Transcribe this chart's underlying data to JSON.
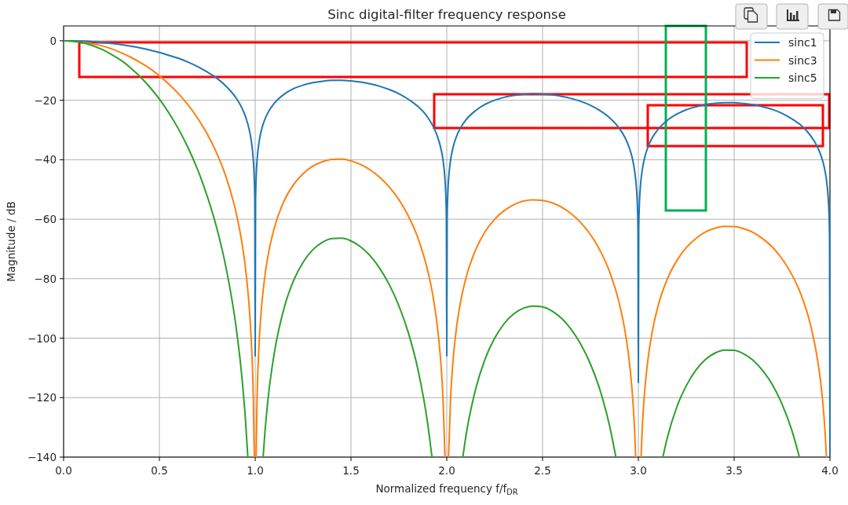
{
  "chart_data": {
    "type": "line",
    "title": "Sinc digital-filter frequency response",
    "xlabel": "Normalized frequency f/f$_{DR}$",
    "ylabel": "Magnitude / dB",
    "xlim": [
      0,
      4
    ],
    "ylim": [
      -140,
      5
    ],
    "xticks": [
      {
        "value": 0,
        "label": "0.0"
      },
      {
        "value": 0.5,
        "label": "0.5"
      },
      {
        "value": 1,
        "label": "1.0"
      },
      {
        "value": 1.5,
        "label": "1.5"
      },
      {
        "value": 2,
        "label": "2.0"
      },
      {
        "value": 2.5,
        "label": "2.5"
      },
      {
        "value": 3,
        "label": "3.0"
      },
      {
        "value": 3.5,
        "label": "3.5"
      },
      {
        "value": 4,
        "label": "4.0"
      }
    ],
    "yticks": [
      {
        "value": -140,
        "label": "−140"
      },
      {
        "value": -120,
        "label": "−120"
      },
      {
        "value": -100,
        "label": "−100"
      },
      {
        "value": -80,
        "label": "−80"
      },
      {
        "value": -60,
        "label": "−60"
      },
      {
        "value": -40,
        "label": "−40"
      },
      {
        "value": -20,
        "label": "−20"
      },
      0
    ],
    "grid": true,
    "legend": "top right",
    "series": [
      {
        "name": "sinc1",
        "color": "#1f77b4",
        "x": [
          0,
          0.05,
          0.1,
          0.15,
          0.2,
          0.25,
          0.3,
          0.35,
          0.4,
          0.45,
          0.5,
          0.55,
          0.6,
          0.65,
          0.7,
          0.75,
          0.8,
          0.85,
          0.9,
          0.93,
          0.95,
          0.97,
          0.98,
          0.99,
          0.995,
          0.998,
          1.0,
          1.002,
          1.005,
          1.01,
          1.02,
          1.03,
          1.05,
          1.07,
          1.1,
          1.15,
          1.2,
          1.25,
          1.3,
          1.35,
          1.4,
          1.45,
          1.5,
          1.55,
          1.6,
          1.65,
          1.7,
          1.75,
          1.8,
          1.85,
          1.9,
          1.93,
          1.95,
          1.97,
          1.98,
          1.99,
          1.995,
          1.998,
          2.0,
          2.002,
          2.005,
          2.01,
          2.02,
          2.03,
          2.05,
          2.07,
          2.1,
          2.15,
          2.2,
          2.25,
          2.3,
          2.35,
          2.4,
          2.45,
          2.5,
          2.55,
          2.6,
          2.65,
          2.7,
          2.75,
          2.8,
          2.85,
          2.9,
          2.93,
          2.95,
          2.97,
          2.98,
          2.99,
          2.995,
          2.998,
          3.0,
          3.002,
          3.005,
          3.01,
          3.02,
          3.03,
          3.05,
          3.07,
          3.1,
          3.15,
          3.2,
          3.25,
          3.3,
          3.35,
          3.4,
          3.45,
          3.5,
          3.55,
          3.6,
          3.65,
          3.7,
          3.75,
          3.8,
          3.85,
          3.9,
          3.93,
          3.95,
          3.97,
          3.98,
          3.99,
          3.995,
          3.998,
          4.0
        ],
        "values": [
          0,
          0.0,
          -0.1,
          -0.3,
          -0.6,
          -0.9,
          -1.3,
          -1.8,
          -2.4,
          -3.1,
          -3.9,
          -4.9,
          -5.9,
          -7.2,
          -8.7,
          -10.5,
          -12.6,
          -15.4,
          -19.2,
          -22.5,
          -25.6,
          -30.2,
          -33.8,
          -39.9,
          -46.0,
          -54.0,
          -106,
          -54.0,
          -46.1,
          -40.1,
          -34.2,
          -30.7,
          -26.5,
          -23.8,
          -21.0,
          -18.0,
          -16.1,
          -14.9,
          -14.1,
          -13.6,
          -13.3,
          -13.3,
          -13.5,
          -13.9,
          -14.5,
          -15.3,
          -16.4,
          -17.8,
          -19.7,
          -22.1,
          -25.7,
          -28.9,
          -31.9,
          -36.4,
          -39.9,
          -46.0,
          -52.0,
          -60.0,
          -106,
          -60.0,
          -52.1,
          -46.1,
          -40.1,
          -36.6,
          -32.3,
          -29.5,
          -26.6,
          -23.5,
          -21.4,
          -20.0,
          -19.0,
          -18.4,
          -18.0,
          -17.8,
          -17.9,
          -18.2,
          -18.7,
          -19.4,
          -20.4,
          -21.7,
          -23.5,
          -25.9,
          -29.4,
          -32.5,
          -35.5,
          -39.9,
          -43.5,
          -49.5,
          -55.5,
          -63.5,
          -115,
          -63.5,
          -55.6,
          -49.6,
          -43.6,
          -40.1,
          -35.7,
          -32.9,
          -30.0,
          -26.8,
          -24.7,
          -23.2,
          -22.2,
          -21.4,
          -21.0,
          -20.8,
          -20.8,
          -21.1,
          -21.5,
          -22.2,
          -23.1,
          -24.4,
          -26.2,
          -28.5,
          -32.0,
          -35.1,
          -38.0,
          -42.4,
          -46.0,
          -52.0,
          -58.1,
          -66.0,
          -140
        ]
      },
      {
        "name": "sinc3",
        "color": "#ff7f0e",
        "x": [
          0.1,
          0.15,
          0.2,
          0.25,
          0.3,
          0.35,
          0.4,
          0.45,
          0.5,
          0.55,
          0.6,
          0.65,
          0.7,
          0.75,
          0.8,
          0.85,
          0.9,
          0.93,
          0.95,
          0.97,
          0.98,
          0.99,
          0.9954,
          1.0,
          1.0047,
          1.01,
          1.02,
          1.03,
          1.05,
          1.07,
          1.1,
          1.15,
          1.2,
          1.25,
          1.3,
          1.35,
          1.4,
          1.45,
          1.5,
          1.55,
          1.6,
          1.65,
          1.7,
          1.75,
          1.8,
          1.85,
          1.9,
          1.93,
          1.95,
          1.97,
          1.98,
          1.9907,
          2.0,
          2.0093,
          2.02,
          2.03,
          2.05,
          2.07,
          2.1,
          2.15,
          2.2,
          2.25,
          2.3,
          2.35,
          2.4,
          2.45,
          2.5,
          2.55,
          2.6,
          2.65,
          2.7,
          2.75,
          2.8,
          2.85,
          2.9,
          2.93,
          2.95,
          2.97,
          2.98,
          2.9861,
          3.0,
          3.014,
          3.02,
          3.03,
          3.05,
          3.07,
          3.1,
          3.15,
          3.2,
          3.25,
          3.3,
          3.35,
          3.4,
          3.45,
          3.5,
          3.55,
          3.6,
          3.65,
          3.7,
          3.75,
          3.8,
          3.85,
          3.9,
          3.93,
          3.95,
          3.97,
          3.98,
          3.9815
        ],
        "values": [
          -0.4,
          -1.0,
          -1.7,
          -2.7,
          -4.0,
          -5.5,
          -7.3,
          -9.3,
          -11.8,
          -14.6,
          -17.8,
          -21.6,
          -26.1,
          -31.4,
          -37.9,
          -46.2,
          -57.7,
          -67.6,
          -76.8,
          -90.6,
          -101.4,
          -119.7,
          -140,
          null,
          -140,
          -120.3,
          -102.5,
          -92.2,
          -79.4,
          -71.3,
          -62.9,
          -54.0,
          -48.4,
          -44.7,
          -42.2,
          -40.7,
          -39.9,
          -39.8,
          -40.4,
          -41.6,
          -43.4,
          -45.9,
          -49.2,
          -53.4,
          -59.0,
          -66.4,
          -77.2,
          -86.6,
          -95.6,
          -109.1,
          -119.8,
          -140,
          null,
          -140,
          -120.3,
          -109.9,
          -96.9,
          -88.5,
          -79.8,
          -70.4,
          -64.2,
          -60.0,
          -57.1,
          -55.1,
          -53.9,
          -53.5,
          -53.7,
          -54.5,
          -56.0,
          -58.2,
          -61.2,
          -65.2,
          -70.5,
          -77.7,
          -88.2,
          -97.5,
          -106.4,
          -119.8,
          -130.4,
          -140,
          null,
          -140,
          -130.8,
          -120.3,
          -107.2,
          -98.7,
          -89.9,
          -80.3,
          -74.0,
          -69.6,
          -66.5,
          -64.3,
          -63.0,
          -62.4,
          -62.5,
          -63.2,
          -64.5,
          -66.6,
          -69.4,
          -73.3,
          -78.5,
          -85.5,
          -95.9,
          -105.2,
          -114.0,
          -127.3,
          -137.9,
          -140
        ]
      },
      {
        "name": "sinc5",
        "color": "#2ca02c",
        "x": [
          0,
          0.05,
          0.1,
          0.15,
          0.2,
          0.25,
          0.3,
          0.35,
          0.4,
          0.45,
          0.5,
          0.55,
          0.6,
          0.65,
          0.7,
          0.75,
          0.8,
          0.85,
          0.9,
          0.93,
          0.95,
          0.9616,
          1.0,
          1.0416,
          1.05,
          1.07,
          1.1,
          1.15,
          1.2,
          1.25,
          1.3,
          1.35,
          1.4,
          1.45,
          1.5,
          1.55,
          1.6,
          1.65,
          1.7,
          1.75,
          1.8,
          1.85,
          1.9,
          1.9227,
          2.0,
          2.0839,
          2.1,
          2.15,
          2.2,
          2.25,
          2.3,
          2.35,
          2.4,
          2.45,
          2.5,
          2.55,
          2.6,
          2.65,
          2.7,
          2.75,
          2.8,
          2.85,
          2.8826,
          3.0,
          3.128,
          3.15,
          3.2,
          3.25,
          3.3,
          3.35,
          3.4,
          3.45,
          3.5,
          3.55,
          3.6,
          3.65,
          3.7,
          3.75,
          3.8,
          3.8406
        ],
        "values": [
          0,
          -0.2,
          -0.7,
          -1.6,
          -2.9,
          -4.6,
          -6.6,
          -9.1,
          -12.1,
          -15.6,
          -19.6,
          -24.3,
          -29.7,
          -36.0,
          -43.4,
          -52.3,
          -63.1,
          -77.0,
          -96.1,
          -112.7,
          -128.1,
          -140,
          null,
          -140,
          -132.4,
          -118.8,
          -104.9,
          -90.1,
          -80.7,
          -74.5,
          -70.3,
          -67.8,
          -66.5,
          -66.4,
          -67.3,
          -69.3,
          -72.3,
          -76.5,
          -82.0,
          -89.1,
          -98.3,
          -110.7,
          -128.6,
          -140,
          null,
          -140,
          -132.9,
          -117.3,
          -107.0,
          -100.0,
          -95.1,
          -91.8,
          -89.9,
          -89.2,
          -89.5,
          -90.9,
          -93.4,
          -97.1,
          -102.1,
          -108.7,
          -117.5,
          -129.5,
          -140,
          null,
          -140,
          -133.8,
          -123.3,
          -116.0,
          -110.8,
          -107.2,
          -105.0,
          -104.0,
          -104.1,
          -105.3,
          -107.5,
          -111.0,
          -115.7,
          -122.2,
          -130.8,
          -140
        ]
      }
    ]
  }
}
